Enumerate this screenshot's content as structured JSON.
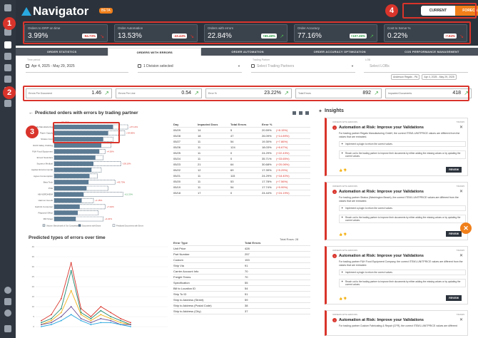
{
  "header": {
    "title": "Navigator",
    "badge": "BETA",
    "toggle": {
      "current": "CURRENT",
      "forecast": "FORECAST"
    }
  },
  "kpis": [
    {
      "label": "Orders to DRP on time",
      "value": "3.99%",
      "badge": "-94.73%",
      "trend": "down"
    },
    {
      "label": "Order Automation",
      "value": "13.53%",
      "badge": "-43.44%",
      "trend": "down"
    },
    {
      "label": "Orders with errors",
      "value": "22.84%",
      "badge": "+65.48%",
      "trend": "up"
    },
    {
      "label": "Order Accuracy",
      "value": "77.16%",
      "badge": "+107.26%",
      "trend": "up"
    },
    {
      "label": "Cost to Serve %",
      "value": "0.22%",
      "badge": "-7.84%",
      "trend": "down"
    }
  ],
  "tabs": [
    "ORDER STATISTICS",
    "ORDERS WITH ERRORS",
    "ORDER AUTOMATION",
    "ORDER ACCURACY OPTIMIZATION",
    "COS PERFORMANCE MANAGEMENT"
  ],
  "filters": {
    "time_label": "Time period",
    "time_value": "Apr 4, 2025 - May 29, 2025",
    "division_value": "1 Division selected",
    "partner_label": "Trading Partner",
    "partner_placeholder": "Select Trading Partners",
    "lob_label": "LOB",
    "lob_placeholder": "Select LOBs",
    "chips": [
      "Anderson Regals - PA",
      "Apr 4, 2025 - May 29, 2025"
    ]
  },
  "metrics": [
    {
      "label": "Errors Per Document",
      "value": "1.46"
    },
    {
      "label": "Errors Per Line",
      "value": "0.54"
    },
    {
      "label": "Error %",
      "value": "23.22%"
    },
    {
      "label": "Total Errors",
      "value": "892"
    },
    {
      "label": "Impacted Documents",
      "value": "418"
    }
  ],
  "annotations": [
    "1",
    "2",
    "3",
    "4"
  ],
  "predicted_orders": {
    "title": "Predicted orders with errors by trading partner",
    "highlight_label": "78.352",
    "legend": [
      "Volume: Benchmark of Our Competitors %",
      "Documents with Errors",
      "Predicted Documents with Errors"
    ]
  },
  "chart_data": [
    {
      "type": "bar",
      "orientation": "horizontal",
      "categories": [
        "Regals Manufacturing",
        "Paper Supply",
        "Stratus Corp",
        "Robb Valley Clothing",
        "F&H Food Equipment",
        "Ernest Saunders",
        "Superior Medical",
        "Applied Environmental",
        "Agnes Consumption",
        "Beta Tech",
        "PCE",
        "AB NORDHEIM",
        "Harmon Goods",
        "Gazinfo Consumer",
        "Regional Office",
        "Mill Street"
      ],
      "series": [
        {
          "name": "Documents with Errors",
          "values": [
            60,
            55,
            50,
            48,
            46,
            42,
            40,
            38,
            36,
            35,
            33,
            30,
            28,
            26,
            24,
            22
          ]
        },
        {
          "name": "Predicted Documents with Errors",
          "values": [
            75,
            72,
            60,
            58,
            52,
            50,
            68,
            48,
            44,
            62,
            55,
            70,
            40,
            52,
            45,
            50
          ]
        }
      ],
      "data_labels": [
        "+37.14%",
        "+34.85%",
        "",
        "",
        "+4.26%",
        "",
        "+28.10%",
        "",
        "",
        "+43.73%",
        "",
        "+11.21%",
        "+1.15%",
        "+7.44%",
        "",
        "+3.22%"
      ]
    },
    {
      "type": "line",
      "title": "Predicted types of errors over time",
      "ylim": [
        0,
        40
      ],
      "yticks": [
        0,
        5,
        10,
        15,
        20,
        25,
        30,
        35,
        40
      ],
      "series": [
        {
          "color": "#d9342b",
          "values": [
            3,
            6,
            14,
            32,
            9,
            5,
            10,
            7,
            4,
            2
          ]
        },
        {
          "color": "#1f8a70",
          "values": [
            2,
            4,
            9,
            28,
            7,
            4,
            8,
            5,
            3,
            1
          ]
        },
        {
          "color": "#f0b21a",
          "values": [
            1,
            3,
            7,
            18,
            6,
            3,
            6,
            4,
            2,
            1
          ]
        },
        {
          "color": "#6a4c93",
          "values": [
            1,
            2,
            5,
            10,
            4,
            2,
            4,
            3,
            1,
            1
          ]
        },
        {
          "color": "#29a8e0",
          "values": [
            0,
            1,
            3,
            6,
            3,
            1,
            2,
            2,
            1,
            0
          ]
        }
      ]
    }
  ],
  "orders_table": {
    "headers": [
      "Day",
      "Impacted Docs",
      "Total Errors",
      "Error %"
    ],
    "rows": [
      [
        "05/29",
        "14",
        "5",
        "20.59%",
        "(+8.15%)"
      ],
      [
        "05/28",
        "18",
        "47",
        "26.09%",
        "(+14.89%)"
      ],
      [
        "05/27",
        "11",
        "54",
        "19.30%",
        "(+7.86%)"
      ],
      [
        "05/26",
        "11",
        "124",
        "18.03%",
        "(+6.67%)"
      ],
      [
        "05/25",
        "11",
        "0",
        "24.29%",
        "(+22.43%)"
      ],
      [
        "05/24",
        "11",
        "0",
        "35.71%",
        "(+33.65%)"
      ],
      [
        "05/23",
        "21",
        "64",
        "30.68%",
        "(+20.06%)"
      ],
      [
        "05/22",
        "12",
        "69",
        "17.39%",
        "(+5.29%)"
      ],
      [
        "05/21",
        "11",
        "115",
        "24.29%",
        "(+18.40%)"
      ],
      [
        "05/20",
        "11",
        "53",
        "17.78%",
        "(+7.56%)"
      ],
      [
        "05/19",
        "11",
        "54",
        "17.74%",
        "(+5.99%)"
      ],
      [
        "05/18",
        "17",
        "0",
        "24.44%",
        "(+24.19%)"
      ]
    ],
    "total_rows": "Total Rows: 28"
  },
  "types_table": {
    "headers": [
      "Error Type",
      "Total Errors"
    ],
    "rows": [
      [
        "Unit Price",
        "428"
      ],
      [
        "Part Number",
        "257"
      ],
      [
        "Custom",
        "153"
      ],
      [
        "Ship Via",
        "91"
      ],
      [
        "Carrier Account Info",
        "70"
      ],
      [
        "Freight Terms",
        "70"
      ],
      [
        "Specification",
        "55"
      ],
      [
        "Bill to Location ID",
        "54"
      ],
      [
        "Ship To ID",
        "51"
      ],
      [
        "Ship to Address (Street)",
        "59"
      ],
      [
        "Ship to Address (Postal Code)",
        "38"
      ],
      [
        "Ship to Address (City)",
        "37"
      ]
    ]
  },
  "insights": {
    "title": "Insights",
    "cards": [
      {
        "tag": "ORDERS WITH ERRORS",
        "date": "7/6/2025",
        "title": "Automation at Risk: Improve your Validations",
        "body": "For trading partner Regals Manufacturing GmbH, the correct ITEM1-UNITPRICE values are different from the values that are extracted.",
        "steps": [
          "Implement a plugin to return the correct values.",
          "Reach out to the trading partner to improve their documents by either adding the missing values or by updating the current values."
        ],
        "review": "REVIEW"
      },
      {
        "tag": "ORDERS WITH ERRORS",
        "date": "7/6/2025",
        "title": "Automation at Risk: Improve your Validations",
        "body": "For trading partner Stratus (Washington Beach), the correct ITEM1-UNITPRICE values are different from the values that are extracted.",
        "steps": [
          "Implement a plugin to return the correct values.",
          "Reach out to the trading partner to improve their documents by either adding the missing values or by updating the current values."
        ],
        "review": "REVIEW"
      },
      {
        "tag": "ORDERS WITH ERRORS",
        "date": "7/6/2025",
        "title": "Automation at Risk: Improve your Validations",
        "body": "For trading partner F&H Food Equipment Company, the correct ITEM1-UNITPRICE values are different from the values that are extracted.",
        "steps": [
          "Implement a plugin to return the correct values.",
          "Reach out to the trading partner to improve their documents by either adding the missing values or by updating the current values."
        ],
        "review": "REVIEW"
      },
      {
        "tag": "ORDERS WITH ERRORS",
        "date": "7/6/2025",
        "title": "Automation at Risk: Improve your Validations",
        "body": "For trading partner Custom Fabricating & Repair (CFR), the correct ITEM1-UNITPRICE values are different",
        "steps": [],
        "review": ""
      }
    ]
  },
  "colors": {
    "accent": "#f07f1a",
    "negative": "#d9342b",
    "positive": "#4caf50",
    "header_bg": "#2b323b",
    "bar_actual": "#5b7a93",
    "bar_predicted": "#3f5366"
  }
}
